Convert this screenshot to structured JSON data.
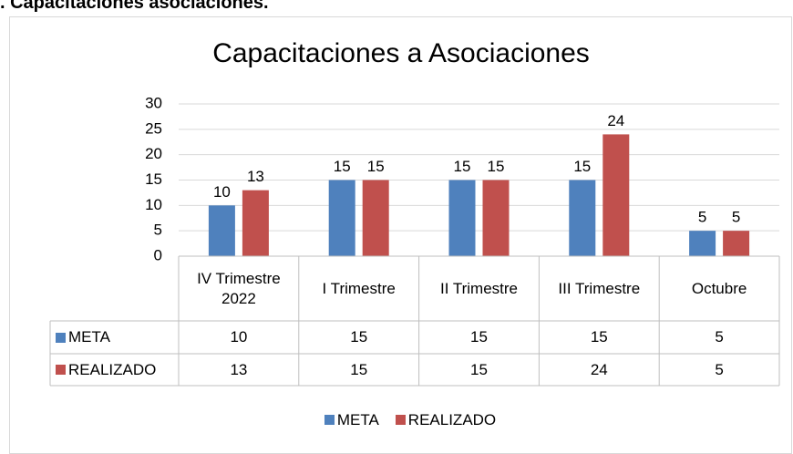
{
  "header": {
    "title": ". Capacitaciones asociaciones."
  },
  "chart_data": {
    "type": "bar",
    "title": "Capacitaciones a Asociaciones",
    "categories": [
      "IV Trimestre 2022",
      "I Trimestre",
      "II Trimestre",
      "III Trimestre",
      "Octubre"
    ],
    "series": [
      {
        "name": "META",
        "color": "#4f81bd",
        "values": [
          10,
          15,
          15,
          15,
          5
        ]
      },
      {
        "name": "REALIZADO",
        "color": "#c0504d",
        "values": [
          13,
          15,
          15,
          24,
          5
        ]
      }
    ],
    "ylim": [
      0,
      30
    ],
    "yticks": [
      0,
      5,
      10,
      15,
      20,
      25,
      30
    ],
    "grid": true,
    "legend": "bottom",
    "data_table": true
  }
}
